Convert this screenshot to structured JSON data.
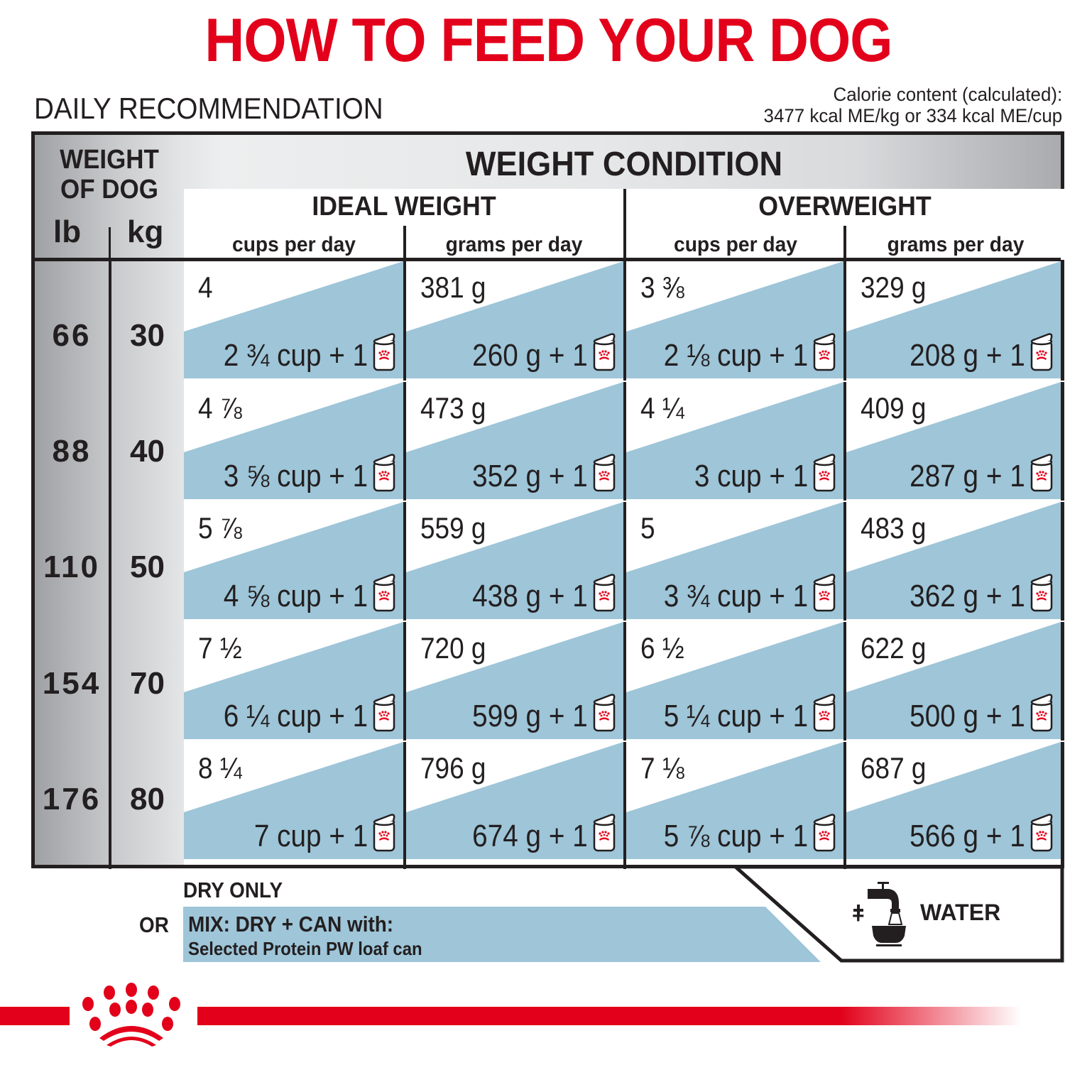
{
  "title": "HOW TO FEED YOUR DOG",
  "subtitle": "DAILY RECOMMENDATION",
  "calorie": {
    "line1": "Calorie content (calculated):",
    "line2": "3477 kcal ME/kg or 334 kcal ME/cup"
  },
  "colors": {
    "brand_red": "#e2001a",
    "mix_blue": "#9ec5d8",
    "text": "#231f20",
    "grid": "#231f20"
  },
  "table": {
    "weight_header": {
      "line1": "WEIGHT",
      "line2": "OF DOG",
      "unit_lb": "lb",
      "unit_kg": "kg"
    },
    "condition_header": "WEIGHT CONDITION",
    "groups": [
      {
        "title": "IDEAL WEIGHT",
        "cols": [
          "cups per day",
          "grams per day"
        ]
      },
      {
        "title": "OVERWEIGHT",
        "cols": [
          "cups per day",
          "grams per day"
        ]
      }
    ],
    "can_icon": "royal-canin-can-icon",
    "rows": [
      {
        "lb": "66",
        "kg": "30",
        "cells": [
          {
            "dry": "4",
            "mix": "2 ¾ cup + 1"
          },
          {
            "dry": "381 g",
            "mix": "260 g + 1"
          },
          {
            "dry": "3 ⅜",
            "mix": "2 ⅛ cup + 1"
          },
          {
            "dry": "329 g",
            "mix": "208 g + 1"
          }
        ]
      },
      {
        "lb": "88",
        "kg": "40",
        "cells": [
          {
            "dry": "4 ⅞",
            "mix": "3 ⅝ cup + 1"
          },
          {
            "dry": "473 g",
            "mix": "352 g + 1"
          },
          {
            "dry": "4 ¼",
            "mix": "3 cup + 1"
          },
          {
            "dry": "409 g",
            "mix": "287 g + 1"
          }
        ]
      },
      {
        "lb": "110",
        "kg": "50",
        "cells": [
          {
            "dry": "5 ⅞",
            "mix": "4 ⅝ cup + 1"
          },
          {
            "dry": "559 g",
            "mix": "438 g + 1"
          },
          {
            "dry": "5",
            "mix": "3 ¾ cup + 1"
          },
          {
            "dry": "483 g",
            "mix": "362 g + 1"
          }
        ]
      },
      {
        "lb": "154",
        "kg": "70",
        "cells": [
          {
            "dry": "7 ½",
            "mix": "6 ¼ cup + 1"
          },
          {
            "dry": "720 g",
            "mix": "599 g + 1"
          },
          {
            "dry": "6 ½",
            "mix": "5 ¼ cup + 1"
          },
          {
            "dry": "622 g",
            "mix": "500 g + 1"
          }
        ]
      },
      {
        "lb": "176",
        "kg": "80",
        "cells": [
          {
            "dry": "8 ¼",
            "mix": "7 cup + 1"
          },
          {
            "dry": "796 g",
            "mix": "674 g + 1"
          },
          {
            "dry": "7 ⅛",
            "mix": "5 ⅞ cup + 1"
          },
          {
            "dry": "687 g",
            "mix": "566 g + 1"
          }
        ]
      }
    ]
  },
  "legend": {
    "dry_only": "DRY ONLY",
    "or": "OR",
    "mix_line1": "MIX: DRY + CAN with:",
    "mix_line2": "Selected Protein PW loaf can",
    "water_plus": "+",
    "water_label": "WATER",
    "water_icon": "tap-and-bowl-icon"
  },
  "brand": {
    "logo_icon": "royal-canin-crown-logo"
  }
}
